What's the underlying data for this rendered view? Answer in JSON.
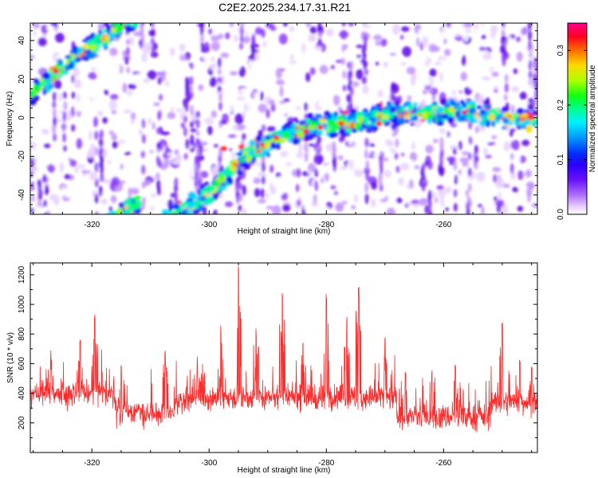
{
  "title": "C2E2.2025.234.17.31.R21",
  "colors": {
    "axis": "#000000",
    "snr_line": "#ff2a2a"
  },
  "chart_data": [
    {
      "type": "heatmap",
      "name": "spectrogram",
      "xlabel": "Height of straight line (km)",
      "ylabel": "Frequency (Hz)",
      "xlim": [
        -330.5,
        -244
      ],
      "ylim": [
        -50,
        49
      ],
      "xticks": [
        -320,
        -300,
        -280,
        -260
      ],
      "xtick_labels": [
        "-320",
        "-300",
        "-280",
        "-260"
      ],
      "yticks": [
        -40,
        -20,
        0,
        20,
        40
      ],
      "ytick_labels": [
        "-40",
        "-20",
        "0",
        "20",
        "40"
      ],
      "colorbar": {
        "label": "Normalized spectral amplitude",
        "range": [
          0.0,
          0.35
        ],
        "ticks": [
          0.0,
          0.1,
          0.2,
          0.3
        ],
        "tick_labels": [
          "0.0",
          "0.1",
          "0.2",
          "0.3"
        ],
        "colormap": [
          "#ffffff",
          "#e8d0ff",
          "#c090ff",
          "#8a3bff",
          "#5a00e8",
          "#3000ff",
          "#0018ff",
          "#0078ff",
          "#00d8ff",
          "#00ffa0",
          "#00ff30",
          "#a0ff00",
          "#ffe000",
          "#ff7800",
          "#ff1800",
          "#ff0060",
          "#ff00a0"
        ]
      },
      "ridge": {
        "description_points_x": [
          -330.5,
          -322,
          -315,
          -308,
          -300,
          -294,
          -288,
          -282,
          -276,
          -270,
          -262,
          -256,
          -250,
          -244
        ],
        "description_points_y": [
          12,
          33,
          47,
          -53,
          -40,
          -20,
          -10,
          -4,
          -3,
          2,
          3,
          3,
          0,
          -1
        ],
        "notes": "main signal trace: rises steeply from +12 Hz at -330 km, wraps near +50 Hz, continues from -50 Hz at -315 km up to about 0 Hz beyond -280 km"
      }
    },
    {
      "type": "line",
      "name": "snr",
      "xlabel": "Height of straight line (km)",
      "ylabel": "SNR (10 * v/v)",
      "xlim": [
        -330.5,
        -244
      ],
      "ylim": [
        0,
        1280
      ],
      "xticks": [
        -320,
        -300,
        -280,
        -260
      ],
      "xtick_labels": [
        "-320",
        "-300",
        "-280",
        "-260"
      ],
      "yticks": [
        200,
        400,
        600,
        800,
        1000,
        1200
      ],
      "ytick_labels": [
        "200",
        "400",
        "600",
        "800",
        "1000",
        "1200"
      ],
      "baseline": 280,
      "peaks": [
        {
          "x": -327,
          "y": 700
        },
        {
          "x": -322,
          "y": 760
        },
        {
          "x": -319.5,
          "y": 930
        },
        {
          "x": -315,
          "y": 620
        },
        {
          "x": -307.5,
          "y": 720
        },
        {
          "x": -302,
          "y": 660
        },
        {
          "x": -298,
          "y": 870
        },
        {
          "x": -295,
          "y": 1280
        },
        {
          "x": -292,
          "y": 860
        },
        {
          "x": -287.5,
          "y": 1080
        },
        {
          "x": -284,
          "y": 780
        },
        {
          "x": -280,
          "y": 1080
        },
        {
          "x": -276.5,
          "y": 930
        },
        {
          "x": -274.5,
          "y": 1160
        },
        {
          "x": -270,
          "y": 780
        },
        {
          "x": -266.5,
          "y": 580
        },
        {
          "x": -262,
          "y": 560
        },
        {
          "x": -258,
          "y": 600
        },
        {
          "x": -250,
          "y": 880
        },
        {
          "x": -247,
          "y": 660
        },
        {
          "x": -245,
          "y": 620
        }
      ]
    }
  ]
}
